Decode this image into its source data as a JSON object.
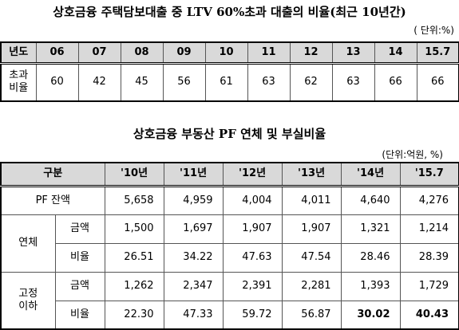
{
  "table1": {
    "title": "상호금융 주택담보대출 중 LTV 60%초과 대출의 비율(최근 10년간)",
    "unit": "( 단위:%)",
    "header": [
      "년도",
      "06",
      "07",
      "08",
      "09",
      "10",
      "11",
      "12",
      "13",
      "14",
      "15.7"
    ],
    "row_label": [
      "초과",
      "비율"
    ],
    "values": [
      "60",
      "42",
      "45",
      "56",
      "61",
      "63",
      "62",
      "63",
      "66",
      "66"
    ]
  },
  "table2": {
    "title": "상호금융 부동산 PF 연체 및 부실비율",
    "unit": "(단위:억원, %)",
    "header": [
      "구분",
      "'10년",
      "'11년",
      "'12년",
      "'13년",
      "'14년",
      "'15.7"
    ],
    "pf_row": {
      "label": "PF 잔액",
      "values": [
        "5,658",
        "4,959",
        "4,004",
        "4,011",
        "4,640",
        "4,276"
      ]
    },
    "groups": [
      {
        "label": [
          "연체"
        ],
        "rows": [
          {
            "label": "금액",
            "values": [
              "1,500",
              "1,697",
              "1,907",
              "1,907",
              "1,321",
              "1,214"
            ]
          },
          {
            "label": "비율",
            "values": [
              "26.51",
              "34.22",
              "47.63",
              "47.54",
              "28.46",
              "28.39"
            ]
          }
        ]
      },
      {
        "label": [
          "고정",
          "이하"
        ],
        "rows": [
          {
            "label": "금액",
            "values": [
              "1,262",
              "2,347",
              "2,391",
              "2,281",
              "1,393",
              "1,729"
            ]
          },
          {
            "label": "비율",
            "values": [
              "22.30",
              "47.33",
              "59.72",
              "56.87",
              "30.02",
              "40.43"
            ]
          }
        ]
      }
    ]
  }
}
